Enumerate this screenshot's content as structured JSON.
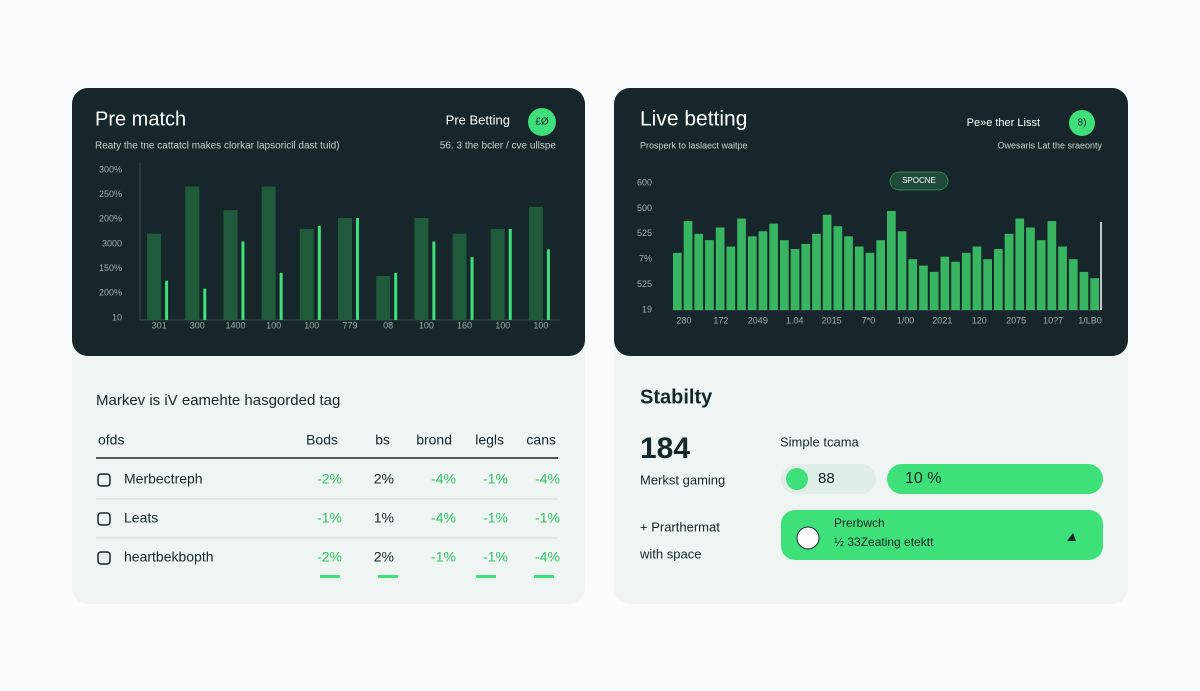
{
  "left_card": {
    "title": "Pre match",
    "button": "Pre Betting",
    "icon": "£Ø",
    "subtitle": "Reaty the tne cattatcl makes clorkar lapsoricil dast tuid)",
    "subtitle_right": "56. 3 the bcler / cve ullspe",
    "chart": {
      "type": "bar",
      "ylim": [
        0,
        100
      ],
      "y_labels": [
        "300%",
        "250%",
        "200%",
        "3000",
        "150%",
        "200%",
        "10"
      ],
      "categories": [
        "301",
        "300",
        "1400",
        "100",
        "100",
        "779",
        "08",
        "100",
        "160",
        "100",
        "100"
      ],
      "series": [
        {
          "color": "#1f5a3a",
          "values": [
            55,
            85,
            70,
            85,
            58,
            65,
            28,
            65,
            55,
            58,
            72
          ]
        },
        {
          "color": "#3ee07a",
          "values": [
            25,
            20,
            50,
            30,
            60,
            65,
            30,
            50,
            40,
            58,
            45
          ]
        }
      ]
    },
    "heading": "Markev is iV eamehte hasgorded tag",
    "table": {
      "header": [
        "ofds",
        "Bods",
        "bs",
        "brond",
        "legls",
        "cans"
      ],
      "rows": [
        [
          "Merbectreph",
          "-2%",
          "2%",
          "-4%",
          "-1%",
          "-4%"
        ],
        [
          "Leats",
          "-1%",
          "1%",
          "-4%",
          "-1%",
          "-1%"
        ],
        [
          "heartbekbopth",
          "-2%",
          "2%",
          "-1%",
          "-1%",
          "-4%"
        ]
      ]
    }
  },
  "right_card": {
    "title": "Live betting",
    "button": "Pe»e ther Lisst",
    "icon": "8)",
    "subtitle": "Prosperk to laslaect waitpe",
    "subtitle_right": "Owesaris Lat the sraeonty",
    "badge": "SPOCNE",
    "chart": {
      "type": "bar",
      "ylim": [
        0,
        100
      ],
      "color": "#3ecf6a",
      "y_labels": [
        "600",
        "500",
        "525",
        "7%",
        "525",
        "19"
      ],
      "x_labels": [
        "280",
        "172",
        "2049",
        "1.04",
        "2015",
        "7*0",
        "1/00",
        "2021",
        "120",
        "2075",
        "10?7",
        "1/LB0"
      ],
      "values": [
        45,
        70,
        60,
        55,
        65,
        50,
        72,
        58,
        62,
        68,
        55,
        48,
        52,
        60,
        75,
        66,
        58,
        50,
        45,
        55,
        78,
        62,
        40,
        35,
        30,
        42,
        38,
        45,
        50,
        40,
        48,
        60,
        72,
        65,
        55,
        70,
        50,
        40,
        30,
        25
      ]
    },
    "heading": "Stabilty",
    "big_number": "184",
    "number_caption": "Merkst gaming",
    "simple_label": "Simple tcama",
    "pill": "88",
    "progress": "10 %",
    "note_1": "+ Prarthermat",
    "note_2": "with space",
    "promo_title": "Prerbwch",
    "promo_text": "½ 33Zeating etektt"
  }
}
